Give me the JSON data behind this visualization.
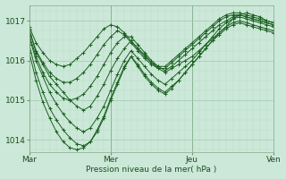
{
  "title": "",
  "xlabel": "Pression niveau de la mer( hPa )",
  "ylabel": "",
  "background_color": "#cce8d8",
  "plot_bg_color": "#cce8d8",
  "line_color": "#1a6020",
  "marker_color": "#1a6020",
  "ylim": [
    1013.7,
    1017.4
  ],
  "yticks": [
    1014,
    1015,
    1016,
    1017
  ],
  "xtick_labels": [
    "Mar",
    "Mer",
    "Jeu",
    "Ven"
  ],
  "xtick_positions": [
    0,
    48,
    96,
    144
  ],
  "total_hours": 144,
  "series": [
    [
      1016.8,
      1016.2,
      1015.9,
      1015.6,
      1015.4,
      1015.2,
      1015.0,
      1014.85,
      1014.75,
      1014.85,
      1015.1,
      1015.4,
      1015.75,
      1016.05,
      1016.3,
      1016.5,
      1016.3,
      1016.15,
      1015.95,
      1015.8,
      1015.7,
      1015.8,
      1015.9,
      1016.0,
      1016.1,
      1016.25,
      1016.4,
      1016.55,
      1016.7,
      1016.85,
      1017.05,
      1017.15,
      1017.2,
      1017.15,
      1017.1,
      1017.0,
      1016.95
    ],
    [
      1016.6,
      1016.0,
      1015.6,
      1015.2,
      1014.9,
      1014.65,
      1014.45,
      1014.3,
      1014.2,
      1014.3,
      1014.55,
      1014.85,
      1015.25,
      1015.65,
      1016.0,
      1016.25,
      1016.05,
      1015.85,
      1015.65,
      1015.5,
      1015.4,
      1015.55,
      1015.7,
      1015.85,
      1016.0,
      1016.2,
      1016.4,
      1016.6,
      1016.8,
      1016.95,
      1017.05,
      1017.1,
      1017.05,
      1017.0,
      1016.95,
      1016.9,
      1016.85
    ],
    [
      1016.4,
      1015.7,
      1015.2,
      1014.8,
      1014.5,
      1014.25,
      1014.05,
      1013.9,
      1013.85,
      1013.95,
      1014.2,
      1014.55,
      1015.0,
      1015.4,
      1015.8,
      1016.1,
      1015.9,
      1015.65,
      1015.45,
      1015.3,
      1015.2,
      1015.35,
      1015.5,
      1015.7,
      1015.9,
      1016.1,
      1016.3,
      1016.5,
      1016.7,
      1016.85,
      1016.95,
      1017.0,
      1016.95,
      1016.9,
      1016.85,
      1016.8,
      1016.75
    ],
    [
      1016.2,
      1015.5,
      1014.95,
      1014.55,
      1014.2,
      1013.95,
      1013.8,
      1013.75,
      1013.8,
      1013.95,
      1014.25,
      1014.6,
      1015.05,
      1015.45,
      1015.85,
      1016.1,
      1015.85,
      1015.6,
      1015.4,
      1015.25,
      1015.15,
      1015.3,
      1015.5,
      1015.7,
      1015.9,
      1016.1,
      1016.3,
      1016.5,
      1016.65,
      1016.8,
      1016.9,
      1016.95,
      1016.9,
      1016.85,
      1016.8,
      1016.75,
      1016.7
    ],
    [
      1016.65,
      1016.1,
      1015.7,
      1015.4,
      1015.2,
      1015.05,
      1015.0,
      1015.05,
      1015.15,
      1015.35,
      1015.6,
      1015.9,
      1016.2,
      1016.45,
      1016.6,
      1016.6,
      1016.4,
      1016.2,
      1016.0,
      1015.85,
      1015.75,
      1015.85,
      1016.0,
      1016.15,
      1016.3,
      1016.45,
      1016.6,
      1016.75,
      1016.9,
      1017.0,
      1017.1,
      1017.15,
      1017.1,
      1017.05,
      1017.0,
      1016.95,
      1016.9
    ],
    [
      1016.75,
      1016.25,
      1015.95,
      1015.7,
      1015.55,
      1015.45,
      1015.45,
      1015.55,
      1015.7,
      1015.9,
      1016.15,
      1016.4,
      1016.6,
      1016.75,
      1016.65,
      1016.45,
      1016.25,
      1016.05,
      1015.9,
      1015.8,
      1015.8,
      1015.95,
      1016.1,
      1016.25,
      1016.4,
      1016.55,
      1016.7,
      1016.85,
      1017.0,
      1017.1,
      1017.15,
      1017.15,
      1017.1,
      1017.05,
      1017.0,
      1016.95,
      1016.9
    ],
    [
      1016.85,
      1016.45,
      1016.2,
      1016.0,
      1015.9,
      1015.85,
      1015.9,
      1016.05,
      1016.2,
      1016.4,
      1016.6,
      1016.8,
      1016.9,
      1016.85,
      1016.7,
      1016.5,
      1016.3,
      1016.1,
      1015.95,
      1015.85,
      1015.85,
      1016.0,
      1016.15,
      1016.3,
      1016.45,
      1016.6,
      1016.75,
      1016.9,
      1017.05,
      1017.15,
      1017.2,
      1017.2,
      1017.15,
      1017.1,
      1017.05,
      1017.0,
      1016.95
    ]
  ]
}
